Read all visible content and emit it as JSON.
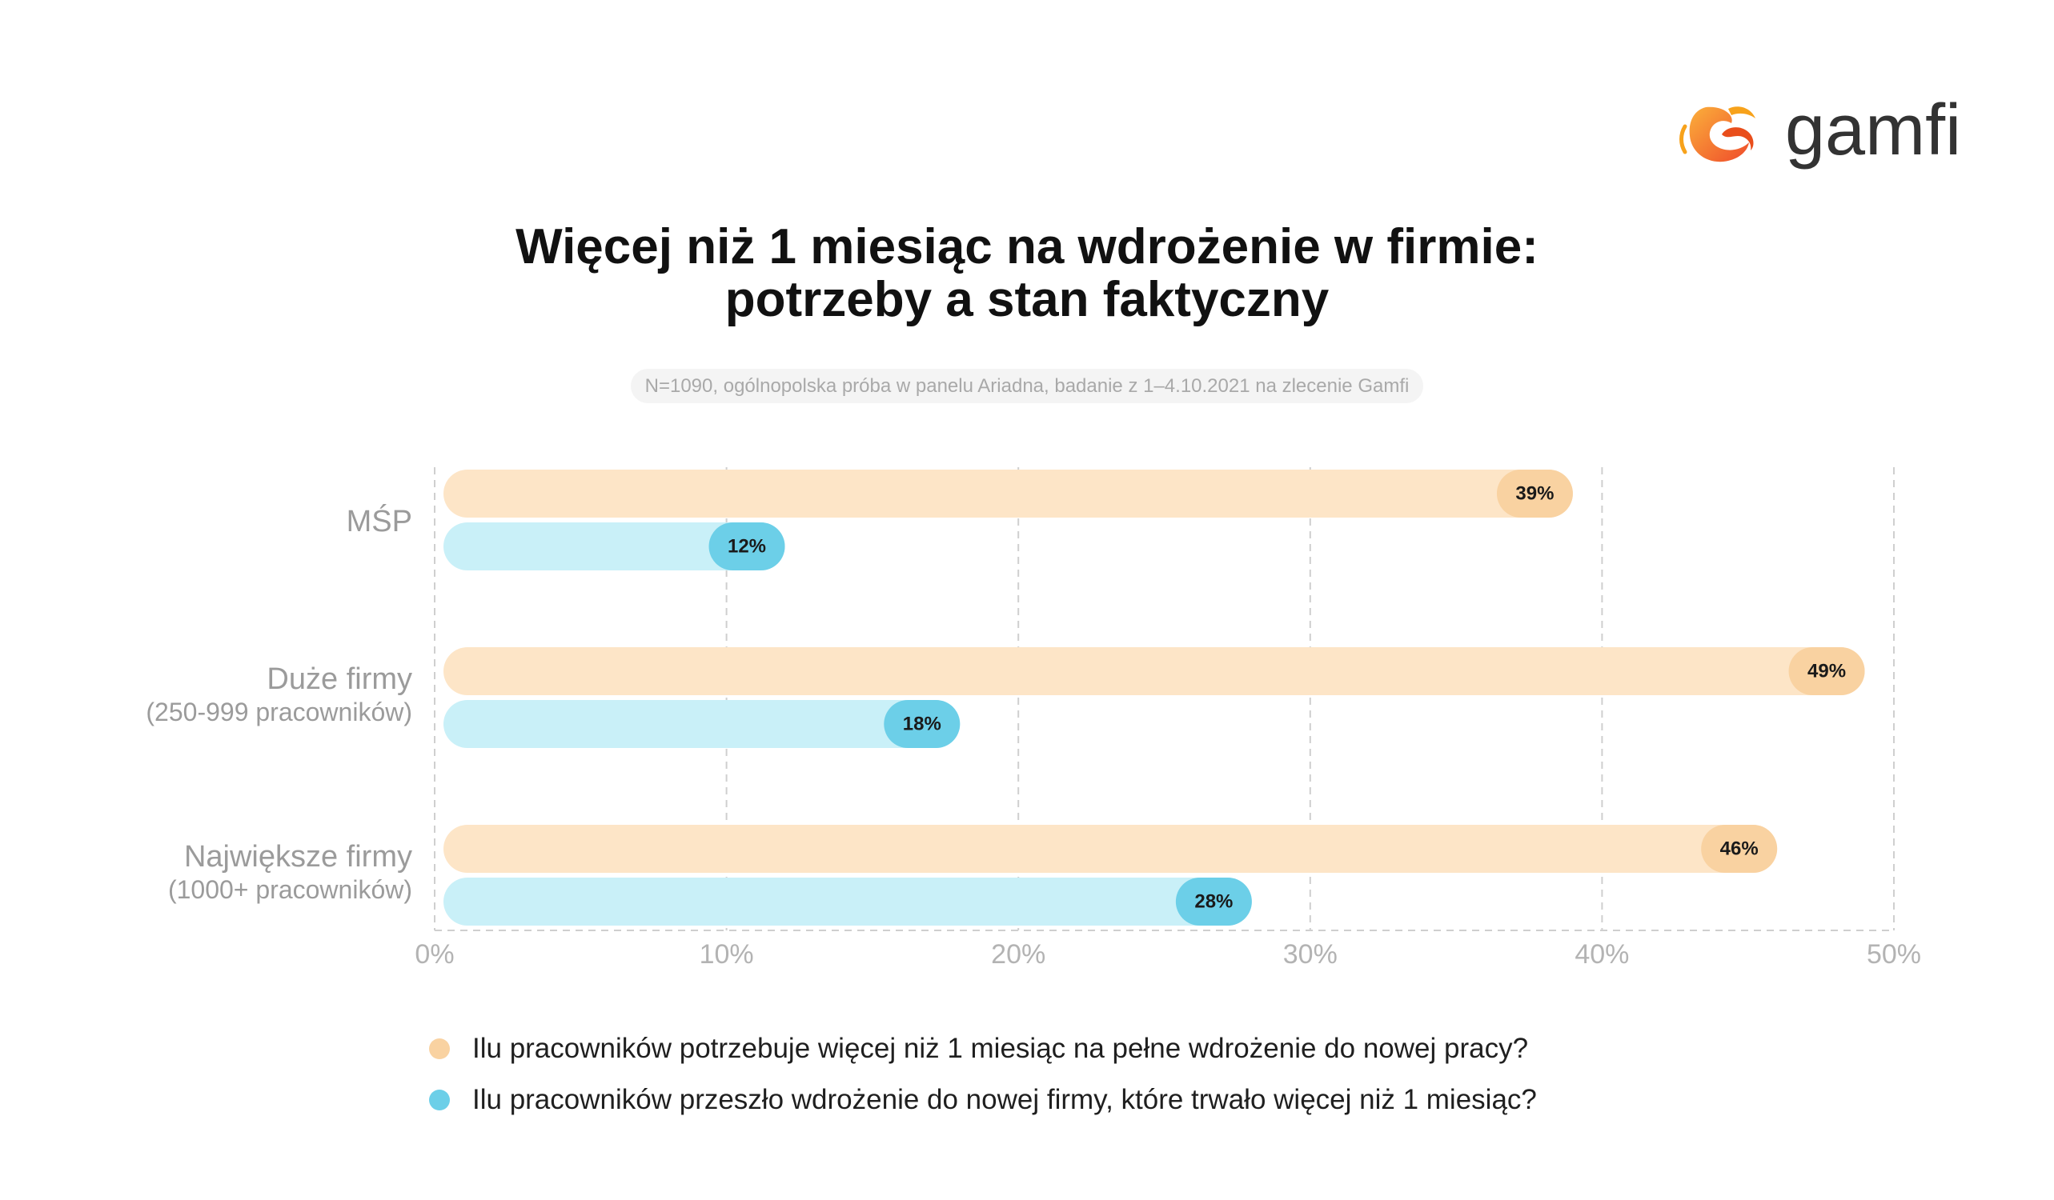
{
  "brand": {
    "name": "gamfi",
    "logo_icon": "gamfi-flame-swirl-icon",
    "colors": {
      "orange": "#F7A21B",
      "red": "#E94E1B",
      "text": "#333333"
    }
  },
  "chart_data": {
    "type": "bar",
    "orientation": "horizontal",
    "title": [
      "Więcej niż 1 miesiąc na wdrożenie w firmie:",
      "potrzeby a stan faktyczny"
    ],
    "subtitle": "N=1090, ogólnopolska próba w panelu Ariadna, badanie z 1–4.10.2021 na zlecenie Gamfi",
    "categories": [
      "MŚP",
      "Duże firmy",
      "Największe firmy"
    ],
    "category_sublabels": [
      "",
      "(250-999 pracowników)",
      "(1000+ pracowników)"
    ],
    "series": [
      {
        "name": "Ilu pracowników potrzebuje więcej niż 1 miesiąc na pełne wdrożenie do nowej pracy?",
        "values": [
          39,
          49,
          46
        ],
        "value_labels": [
          "39%",
          "49%",
          "46%"
        ],
        "bar_color": "#FDE5C7",
        "accent_color": "#F9D2A1"
      },
      {
        "name": "Ilu pracowników przeszło wdrożenie do nowej firmy, które trwało więcej niż 1 miesiąc?",
        "values": [
          12,
          18,
          28
        ],
        "value_labels": [
          "12%",
          "18%",
          "28%"
        ],
        "bar_color": "#C9F0F8",
        "accent_color": "#6CCFE8"
      }
    ],
    "xlim": [
      0,
      50
    ],
    "x_ticks": [
      0,
      10,
      20,
      30,
      40,
      50
    ],
    "x_tick_labels": [
      "0%",
      "10%",
      "20%",
      "30%",
      "40%",
      "50%"
    ],
    "xlabel": "",
    "ylabel": "",
    "grid": "vertical dashed",
    "legend": "bottom"
  }
}
